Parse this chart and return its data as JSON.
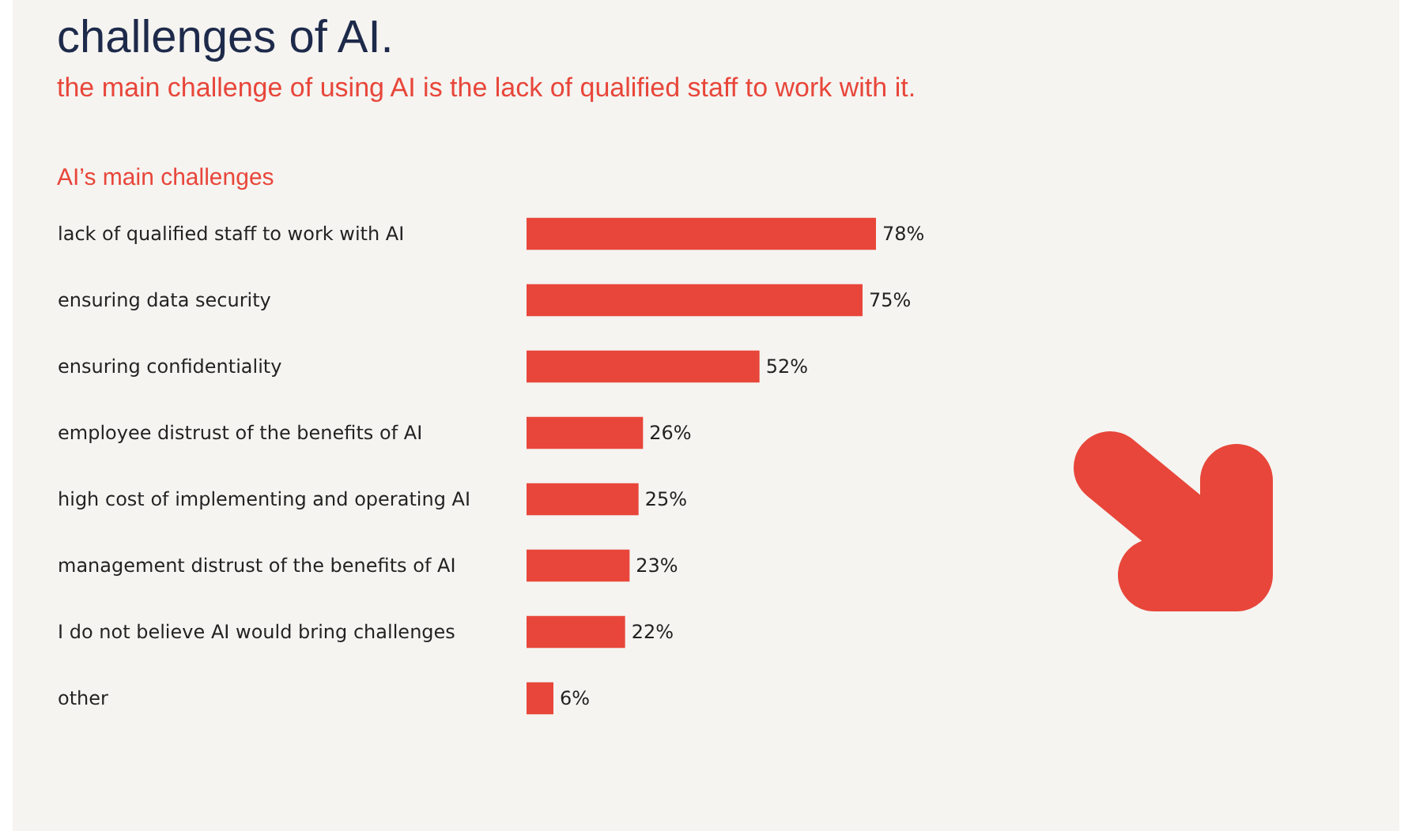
{
  "chart_data": {
    "type": "bar",
    "orientation": "horizontal",
    "title": "challenges of AI.",
    "subtitle": "the main challenge of using AI is the lack of qualified staff to work with it.",
    "annotations": [
      "AI’s main challenges"
    ],
    "categories": [
      "lack of qualified staff to work with AI",
      "ensuring data security",
      "ensuring confidentiality",
      "employee distrust of the benefits of AI",
      "high cost of implementing and operating AI",
      "management distrust of the benefits of AI",
      "I do not believe AI would bring challenges",
      "other"
    ],
    "values": [
      78,
      75,
      52,
      26,
      25,
      23,
      22,
      6
    ],
    "value_labels": [
      "78%",
      "75%",
      "52%",
      "26%",
      "25%",
      "23%",
      "22%",
      "6%"
    ],
    "color": "#e8463a"
  }
}
